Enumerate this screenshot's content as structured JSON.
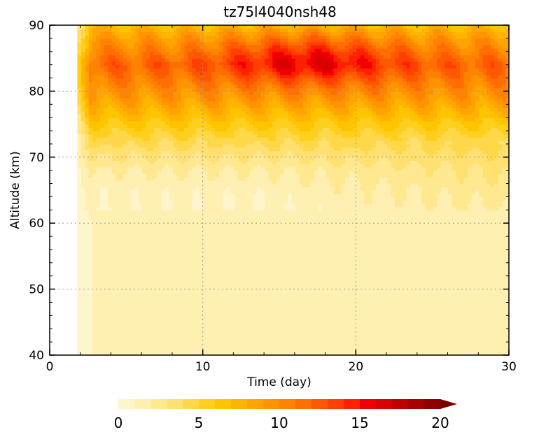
{
  "chart_data": {
    "type": "heatmap",
    "title": "tz75l4040nsh48",
    "xlabel": "Time (day)",
    "ylabel": "Altitude (km)",
    "xlim": [
      0,
      30
    ],
    "ylim": [
      40,
      90
    ],
    "x_ticks": [
      0,
      10,
      20,
      30
    ],
    "y_ticks": [
      40,
      50,
      60,
      70,
      80,
      90
    ],
    "x_tick_labels": [
      "0",
      "10",
      "20",
      "30"
    ],
    "y_tick_labels": [
      "40",
      "50",
      "60",
      "70",
      "80",
      "90"
    ],
    "grid": true,
    "data_start_day": 1.8,
    "colorbar": {
      "min": 0,
      "max": 20,
      "step": 1,
      "extend": "max",
      "tick_values": [
        0,
        5,
        10,
        15,
        20
      ],
      "tick_labels": [
        "0",
        "5",
        "10",
        "15",
        "20"
      ],
      "colors": [
        "#fff5cc",
        "#ffefb0",
        "#ffe890",
        "#ffe070",
        "#ffd84a",
        "#ffcf1e",
        "#ffc400",
        "#ffb400",
        "#ffa400",
        "#ff9400",
        "#ff8200",
        "#ff6e00",
        "#ff5800",
        "#ff4000",
        "#ff2000",
        "#f00000",
        "#d80000",
        "#c00000",
        "#a80000",
        "#900000",
        "#780000"
      ]
    },
    "altitude_profile": [
      {
        "alt": 40,
        "value": 1
      },
      {
        "alt": 50,
        "value": 1
      },
      {
        "alt": 60,
        "value": 1
      },
      {
        "alt": 65,
        "value": 1.3
      },
      {
        "alt": 68,
        "value": 2
      },
      {
        "alt": 71,
        "value": 3.5
      },
      {
        "alt": 75,
        "value": 6
      },
      {
        "alt": 79,
        "value": 9
      },
      {
        "alt": 84,
        "value": 12
      },
      {
        "alt": 88,
        "value": 9
      },
      {
        "alt": 90,
        "value": 7
      }
    ],
    "peak": {
      "day_range": [
        13,
        21
      ],
      "alt": 85,
      "max_value": 15
    }
  }
}
